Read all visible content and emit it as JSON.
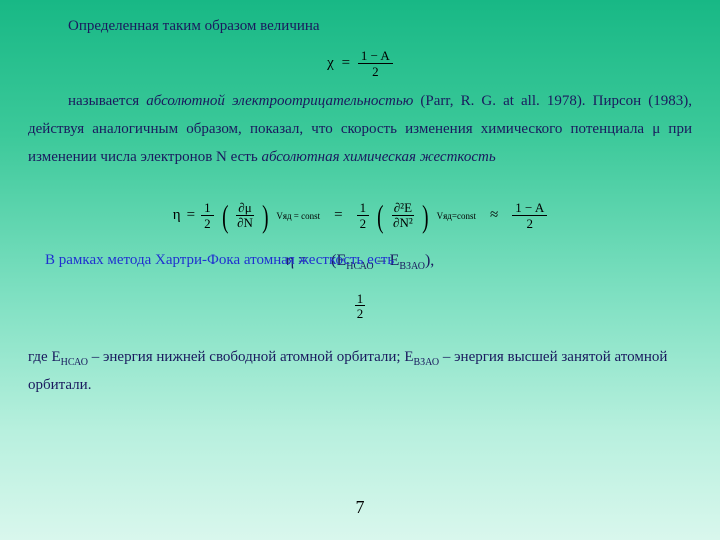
{
  "line1": "Определенная таким образом величина",
  "eq1": {
    "lhs": "χ",
    "eq": "=",
    "num": "1 − A",
    "den": "2"
  },
  "para2": {
    "t1": "называется ",
    "ital1": "абсолютной электроотрицательностью",
    "t2": " (",
    "ref": "Parr, R. G.",
    "t3": " at all. 1978). Пирсон (1983), действуя аналогичным образом, показал, что скорость изменения химического потенциала ",
    "mu": "μ",
    "t4": " при изменении числа электронов N есть ",
    "ital2": "абсолютная химическая жесткость"
  },
  "overlay_blue": "В рамках метода Хартри-Фока атомная жесткость есть",
  "bigeq": {
    "eta": "η",
    "eq": "=",
    "half_n": "1",
    "half_d": "2",
    "dmu": "∂μ",
    "dN": "∂N",
    "cond": "Vяд = const",
    "d2E": "∂²E",
    "dN2": "∂N²",
    "cond2": "Vяд=const",
    "approx": "≈",
    "rhs_n": "1 − A",
    "rhs_d": "2"
  },
  "eq3": {
    "eta": "η",
    "eq": " = ",
    "open": "(E",
    "s1": "НСАО",
    "mid": " – E",
    "s2": "ВЗАО",
    "close": "),"
  },
  "frac_half": {
    "n": "1",
    "d": "2"
  },
  "para3": {
    "t1": "где E",
    "s1": "НСАО",
    "t2": " – энергия нижней свободной атомной орбитали; E",
    "s2": "ВЗАО",
    "t3": " – энергия высшей занятой атомной орбитали."
  },
  "pagenum": "7"
}
